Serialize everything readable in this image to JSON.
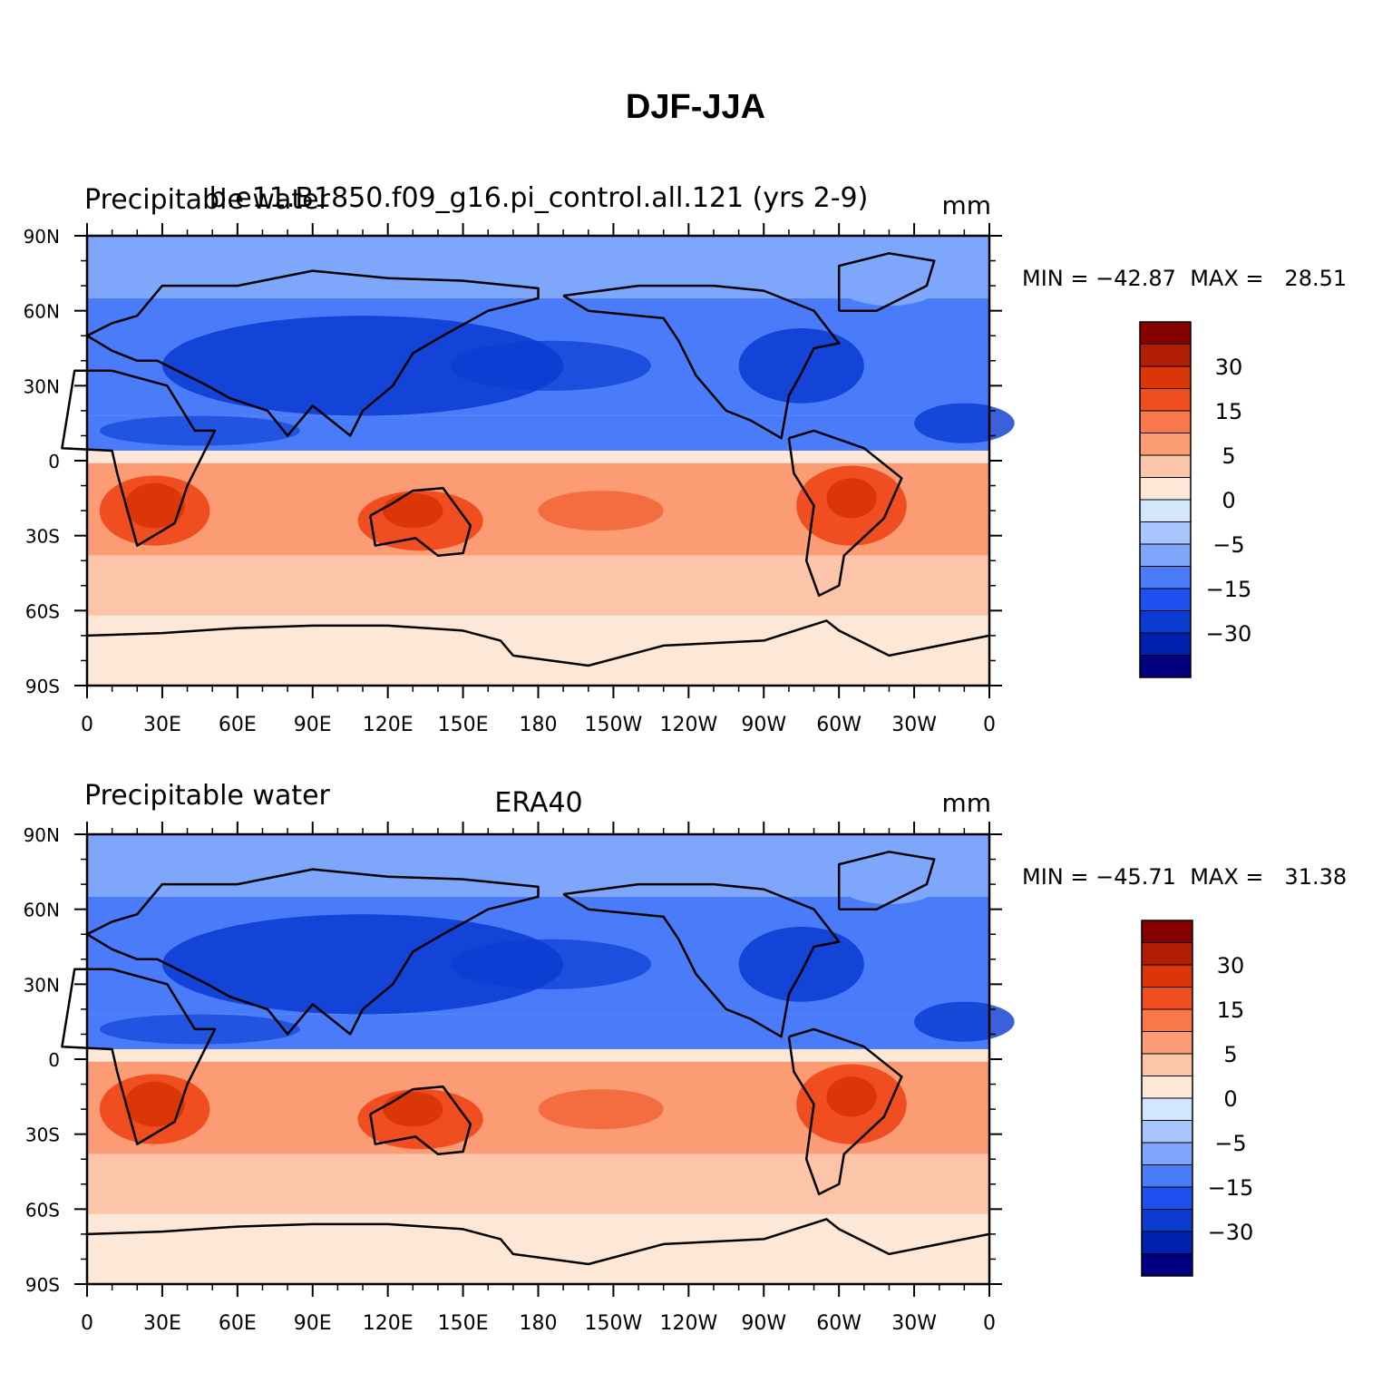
{
  "title": "DJF-JJA",
  "panels": [
    {
      "left_text": "Precipitable water",
      "center_text": "b.e11.B1850.f09_g16.pi_control.all.121 (yrs 2-9)",
      "right_text": "mm",
      "stats": {
        "min_label": "MIN =",
        "min": "−42.87",
        "max_label": "MAX =",
        "max": "28.51"
      }
    },
    {
      "left_text": "Precipitable water",
      "center_text": "ERA40",
      "right_text": "mm",
      "stats": {
        "min_label": "MIN =",
        "min": "−45.71",
        "max_label": "MAX =",
        "max": "31.38"
      }
    }
  ],
  "axes": {
    "x_ticks": [
      "0",
      "30E",
      "60E",
      "90E",
      "120E",
      "150E",
      "180",
      "150W",
      "120W",
      "90W",
      "60W",
      "30W",
      "0"
    ],
    "y_ticks": [
      "90N",
      "60N",
      "30N",
      "0",
      "30S",
      "60S",
      "90S"
    ]
  },
  "colorbar": {
    "colors": [
      "#000080",
      "#0020b0",
      "#0a3ad0",
      "#1e50f0",
      "#4a7cfa",
      "#7ea6fb",
      "#a8c6fd",
      "#d2e6fe",
      "#fde8d8",
      "#fcc4a8",
      "#fb9c74",
      "#f8784c",
      "#f04e20",
      "#da3608",
      "#b01e04",
      "#860000"
    ],
    "labels": [
      "30",
      "15",
      "5",
      "0",
      "−5",
      "−15",
      "−30"
    ]
  },
  "palette": {
    "deep_blue": "#0a3ad0",
    "mid_blue": "#4a7cfa",
    "light_blue": "#7ea6fb",
    "pale": "#fde8d8",
    "light_red": "#fcc4a8",
    "mid_red": "#fb9c74",
    "red": "#f04e20",
    "dark_red": "#da3608"
  }
}
